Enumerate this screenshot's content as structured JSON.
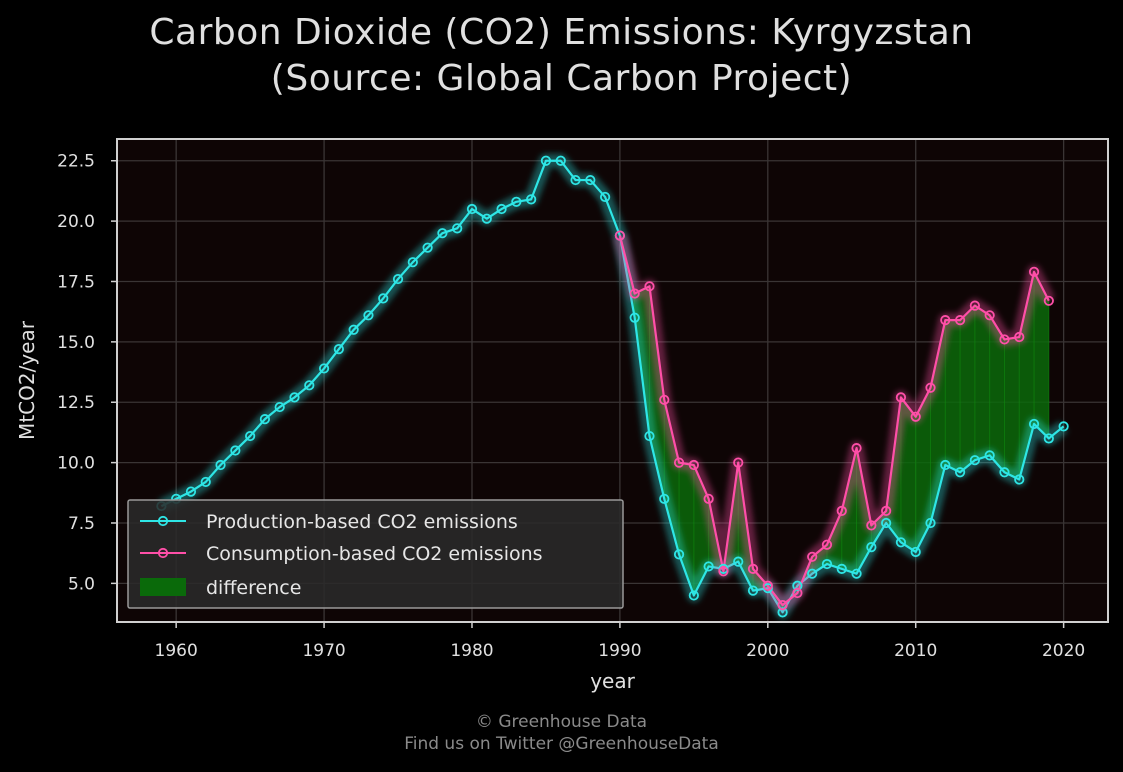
{
  "title_line1": "Carbon Dioxide (CO2) Emissions: Kyrgyzstan",
  "title_line2": "(Source: Global Carbon Project)",
  "credit_line1": "© Greenhouse Data",
  "credit_line2": "Find us on Twitter @GreenhouseData",
  "colors": {
    "background": "#000000",
    "plot_bg": "#0e0505",
    "production": "#2ee6e6",
    "consumption": "#ff4fa8",
    "difference": "#0a6a0a",
    "grid": "#3a3535",
    "frame": "#d0d0d0"
  },
  "chart_data": {
    "type": "line",
    "xlabel": "year",
    "ylabel": "MtCO2/year",
    "xlim": [
      1956,
      2023
    ],
    "ylim": [
      3.4,
      23.4
    ],
    "xticks": [
      1960,
      1970,
      1980,
      1990,
      2000,
      2010,
      2020
    ],
    "yticks": [
      5.0,
      7.5,
      10.0,
      12.5,
      15.0,
      17.5,
      20.0,
      22.5
    ],
    "grid": true,
    "legend_position": "lower-left",
    "legend": [
      "Production-based CO2 emissions",
      "Consumption-based CO2 emissions",
      "difference"
    ],
    "series": [
      {
        "name": "Production-based CO2 emissions",
        "x": [
          1959,
          1960,
          1961,
          1962,
          1963,
          1964,
          1965,
          1966,
          1967,
          1968,
          1969,
          1970,
          1971,
          1972,
          1973,
          1974,
          1975,
          1976,
          1977,
          1978,
          1979,
          1980,
          1981,
          1982,
          1983,
          1984,
          1985,
          1986,
          1987,
          1988,
          1989,
          1990,
          1991,
          1992,
          1993,
          1994,
          1995,
          1996,
          1997,
          1998,
          1999,
          2000,
          2001,
          2002,
          2003,
          2004,
          2005,
          2006,
          2007,
          2008,
          2009,
          2010,
          2011,
          2012,
          2013,
          2014,
          2015,
          2016,
          2017,
          2018,
          2019,
          2020
        ],
        "values": [
          8.2,
          8.5,
          8.8,
          9.2,
          9.9,
          10.5,
          11.1,
          11.8,
          12.3,
          12.7,
          13.2,
          13.9,
          14.7,
          15.5,
          16.1,
          16.8,
          17.6,
          18.3,
          18.9,
          19.5,
          19.7,
          20.5,
          20.1,
          20.5,
          20.8,
          20.9,
          22.5,
          22.5,
          21.7,
          21.7,
          21.0,
          19.4,
          16.0,
          11.1,
          8.5,
          6.2,
          4.5,
          5.7,
          5.6,
          5.9,
          4.7,
          4.8,
          3.8,
          4.9,
          5.4,
          5.8,
          5.6,
          5.4,
          6.5,
          7.5,
          6.7,
          6.3,
          7.5,
          9.9,
          9.6,
          10.1,
          10.3,
          9.6,
          9.3,
          11.6,
          11.0,
          11.5
        ]
      },
      {
        "name": "Consumption-based CO2 emissions",
        "x": [
          1990,
          1991,
          1992,
          1993,
          1994,
          1995,
          1996,
          1997,
          1998,
          1999,
          2000,
          2001,
          2002,
          2003,
          2004,
          2005,
          2006,
          2007,
          2008,
          2009,
          2010,
          2011,
          2012,
          2013,
          2014,
          2015,
          2016,
          2017,
          2018,
          2019
        ],
        "values": [
          19.4,
          17.0,
          17.3,
          12.6,
          10.0,
          9.9,
          8.5,
          5.5,
          10.0,
          5.6,
          4.9,
          4.1,
          4.6,
          6.1,
          6.6,
          8.0,
          10.6,
          7.4,
          8.0,
          12.7,
          11.9,
          13.1,
          15.9,
          15.9,
          16.5,
          16.1,
          15.1,
          15.2,
          17.9,
          16.7
        ]
      }
    ]
  }
}
